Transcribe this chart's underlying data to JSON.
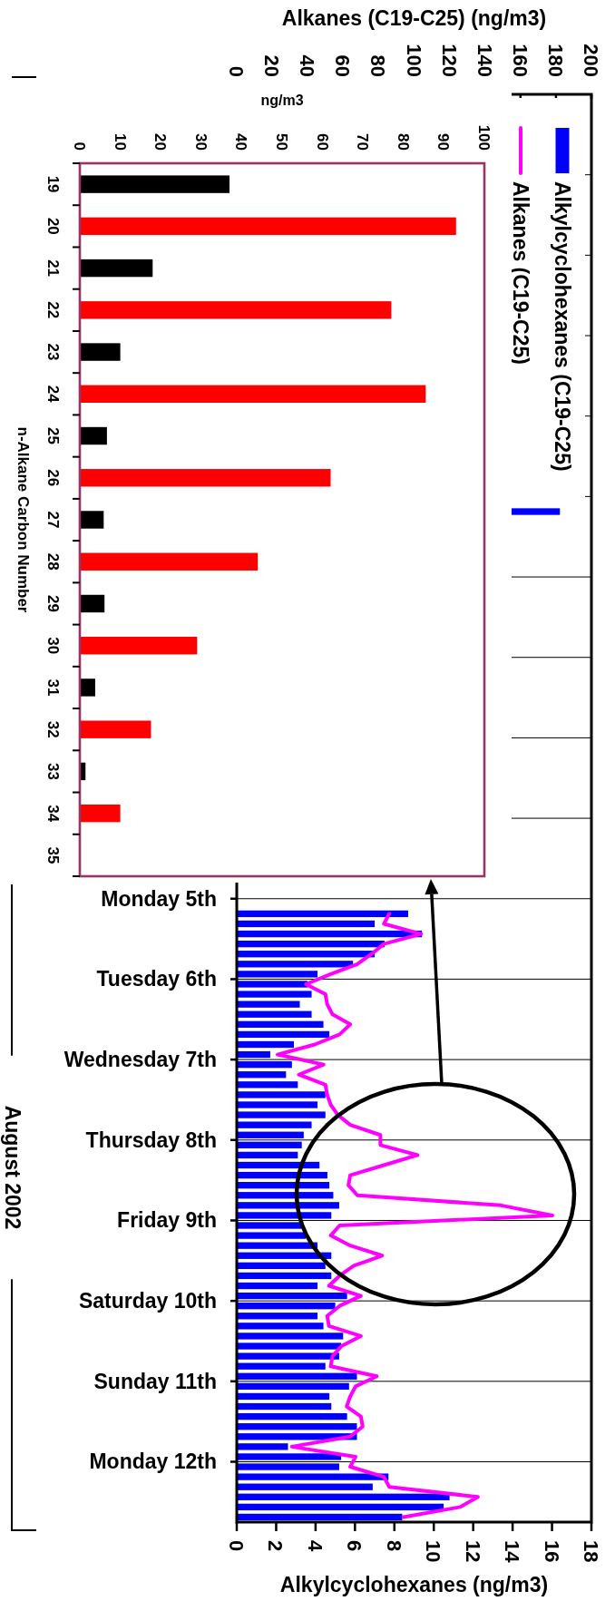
{
  "chart_data": [
    {
      "type": "bar",
      "orientation": "horizontal",
      "xlabel": "Alkylcyclohexanes (ng/m3)",
      "x2label": "Alkanes (C19-C25) (ng/m3)",
      "ylabel": "August 2002",
      "xlim": [
        0,
        18
      ],
      "xticks": [
        0,
        2,
        4,
        6,
        8,
        10,
        12,
        14,
        16,
        18
      ],
      "x2lim": [
        0,
        200
      ],
      "x2ticks": [
        0,
        20,
        40,
        60,
        80,
        100,
        120,
        140,
        160,
        180,
        200
      ],
      "ylim": [
        "2002-08-12T18:00",
        "2002-07-26T00:00"
      ],
      "yticks": [
        {
          "value": "2002-07-27",
          "label": null
        },
        {
          "value": "2002-07-28",
          "label": null
        },
        {
          "value": "2002-07-29",
          "label": null
        },
        {
          "value": "2002-07-30",
          "label": null
        },
        {
          "value": "2002-07-31",
          "label": null
        },
        {
          "value": "2002-08-01",
          "label": null
        },
        {
          "value": "2002-08-02",
          "label": null
        },
        {
          "value": "2002-08-03",
          "label": null
        },
        {
          "value": "2002-08-04",
          "label": null
        },
        {
          "value": "2002-08-05",
          "label": "Monday 5th"
        },
        {
          "value": "2002-08-06",
          "label": "Tuesday 6th"
        },
        {
          "value": "2002-08-07",
          "label": "Wednesday 7th"
        },
        {
          "value": "2002-08-08",
          "label": "Thursday 8th"
        },
        {
          "value": "2002-08-09",
          "label": "Friday 9th"
        },
        {
          "value": "2002-08-10",
          "label": "Saturday 10th"
        },
        {
          "value": "2002-08-11",
          "label": "Sunday 11th"
        },
        {
          "value": "2002-08-12",
          "label": "Monday 12th"
        }
      ],
      "grid": "y",
      "legend": "top right",
      "series": [
        {
          "name": "Alkylcyclohexanes (C19-C25)",
          "type": "bar",
          "color": "#0000ff",
          "x": [
            "2002-07-31T04:30",
            "2002-08-05T04:30",
            "2002-08-05T07:30",
            "2002-08-05T10:30",
            "2002-08-05T13:30",
            "2002-08-05T16:30",
            "2002-08-05T19:30",
            "2002-08-05T22:30",
            "2002-08-06T01:30",
            "2002-08-06T04:30",
            "2002-08-06T07:30",
            "2002-08-06T10:30",
            "2002-08-06T13:30",
            "2002-08-06T16:30",
            "2002-08-06T19:30",
            "2002-08-06T22:30",
            "2002-08-07T01:30",
            "2002-08-07T04:30",
            "2002-08-07T07:30",
            "2002-08-07T10:30",
            "2002-08-07T13:30",
            "2002-08-07T16:30",
            "2002-08-07T19:30",
            "2002-08-07T22:30",
            "2002-08-08T01:30",
            "2002-08-08T04:30",
            "2002-08-08T07:30",
            "2002-08-08T10:30",
            "2002-08-08T13:30",
            "2002-08-08T16:30",
            "2002-08-08T19:30",
            "2002-08-08T22:30",
            "2002-08-09T01:30",
            "2002-08-09T04:30",
            "2002-08-09T07:30",
            "2002-08-09T10:30",
            "2002-08-09T13:30",
            "2002-08-09T16:30",
            "2002-08-09T19:30",
            "2002-08-09T22:30",
            "2002-08-10T01:30",
            "2002-08-10T04:30",
            "2002-08-10T07:30",
            "2002-08-10T10:30",
            "2002-08-10T13:30",
            "2002-08-10T16:30",
            "2002-08-10T19:30",
            "2002-08-10T22:30",
            "2002-08-11T01:30",
            "2002-08-11T04:30",
            "2002-08-11T07:30",
            "2002-08-11T10:30",
            "2002-08-11T13:30",
            "2002-08-11T16:30",
            "2002-08-11T19:30",
            "2002-08-11T22:30",
            "2002-08-12T01:30",
            "2002-08-12T04:30",
            "2002-08-12T07:30",
            "2002-08-12T10:30",
            "2002-08-12T13:30",
            "2002-08-12T16:30"
          ],
          "values": [
            16.4,
            8.7,
            7.0,
            9.4,
            7.5,
            7.0,
            5.9,
            4.1,
            3.6,
            3.8,
            3.2,
            3.8,
            4.4,
            4.7,
            2.9,
            1.7,
            2.8,
            2.5,
            3.1,
            4.5,
            4.1,
            4.5,
            3.8,
            3.4,
            3.3,
            3.1,
            4.2,
            4.6,
            4.7,
            4.9,
            5.2,
            4.8,
            3.3,
            3.5,
            4.1,
            4.8,
            4.5,
            4.8,
            4.1,
            5.6,
            5.0,
            4.1,
            4.4,
            5.4,
            5.3,
            5.2,
            4.5,
            6.1,
            5.7,
            4.7,
            4.8,
            5.6,
            6.1,
            6.1,
            2.6,
            5.3,
            5.2,
            7.7,
            6.9,
            10.8,
            10.5,
            8.4
          ]
        },
        {
          "name": "Alkanes (C19-C25)",
          "type": "line",
          "color": "#ff00ff",
          "axis": "x2",
          "x": [
            "2002-08-05T04:30",
            "2002-08-05T07:30",
            "2002-08-05T10:30",
            "2002-08-05T13:30",
            "2002-08-05T16:30",
            "2002-08-05T19:30",
            "2002-08-05T22:30",
            "2002-08-06T01:30",
            "2002-08-06T04:30",
            "2002-08-06T07:30",
            "2002-08-06T10:30",
            "2002-08-06T13:30",
            "2002-08-06T16:30",
            "2002-08-06T19:30",
            "2002-08-06T22:30",
            "2002-08-07T01:30",
            "2002-08-07T04:30",
            "2002-08-07T07:30",
            "2002-08-07T10:30",
            "2002-08-07T13:30",
            "2002-08-07T16:30",
            "2002-08-07T19:30",
            "2002-08-07T22:30",
            "2002-08-08T01:30",
            "2002-08-08T04:30",
            "2002-08-08T07:30",
            "2002-08-08T10:30",
            "2002-08-08T13:30",
            "2002-08-08T16:30",
            "2002-08-08T19:30",
            "2002-08-08T22:30",
            "2002-08-09T01:30",
            "2002-08-09T04:30",
            "2002-08-09T07:30",
            "2002-08-09T10:30",
            "2002-08-09T13:30",
            "2002-08-09T16:30",
            "2002-08-09T19:30",
            "2002-08-09T22:30",
            "2002-08-10T01:30",
            "2002-08-10T04:30",
            "2002-08-10T07:30",
            "2002-08-10T10:30",
            "2002-08-10T13:30",
            "2002-08-10T16:30",
            "2002-08-10T19:30",
            "2002-08-10T22:30",
            "2002-08-11T01:30",
            "2002-08-11T04:30",
            "2002-08-11T07:30",
            "2002-08-11T10:30",
            "2002-08-11T13:30",
            "2002-08-11T16:30",
            "2002-08-11T19:30",
            "2002-08-11T22:30",
            "2002-08-12T01:30",
            "2002-08-12T04:30",
            "2002-08-12T07:30",
            "2002-08-12T10:30",
            "2002-08-12T13:30",
            "2002-08-12T16:30"
          ],
          "values": [
            86,
            83,
            104,
            83,
            76,
            68,
            53,
            39,
            50,
            51,
            54,
            64,
            58,
            44,
            23,
            49,
            35,
            50,
            51,
            53,
            57,
            64,
            81,
            81,
            102,
            83,
            64,
            63,
            68,
            149,
            178,
            58,
            53,
            64,
            82,
            66,
            58,
            52,
            70,
            58,
            51,
            52,
            70,
            59,
            54,
            53,
            79,
            67,
            64,
            62,
            70,
            71,
            64,
            31,
            67,
            64,
            83,
            86,
            136,
            126,
            94
          ]
        }
      ]
    },
    {
      "type": "bar",
      "orientation": "horizontal",
      "xlabel": "ng/m3",
      "ylabel": "n-Alkane Carbon Number",
      "xlim": [
        0,
        100
      ],
      "xticks": [
        0,
        10,
        20,
        30,
        40,
        50,
        60,
        70,
        80,
        90,
        100
      ],
      "categories": [
        "19",
        "20",
        "21",
        "22",
        "23",
        "24",
        "25",
        "26",
        "27",
        "28",
        "29",
        "30",
        "31",
        "32",
        "33",
        "34",
        "35"
      ],
      "values": [
        37,
        93,
        18,
        77,
        10,
        85.5,
        6.7,
        62,
        5.9,
        44,
        6.1,
        29,
        3.8,
        17.6,
        1.4,
        10,
        null
      ],
      "colors": [
        "#000000",
        "#ff0000",
        "#000000",
        "#ff0000",
        "#000000",
        "#ff0000",
        "#000000",
        "#ff0000",
        "#000000",
        "#ff0000",
        "#000000",
        "#ff0000",
        "#000000",
        "#ff0000",
        "#000000",
        "#ff0000",
        null
      ]
    }
  ]
}
